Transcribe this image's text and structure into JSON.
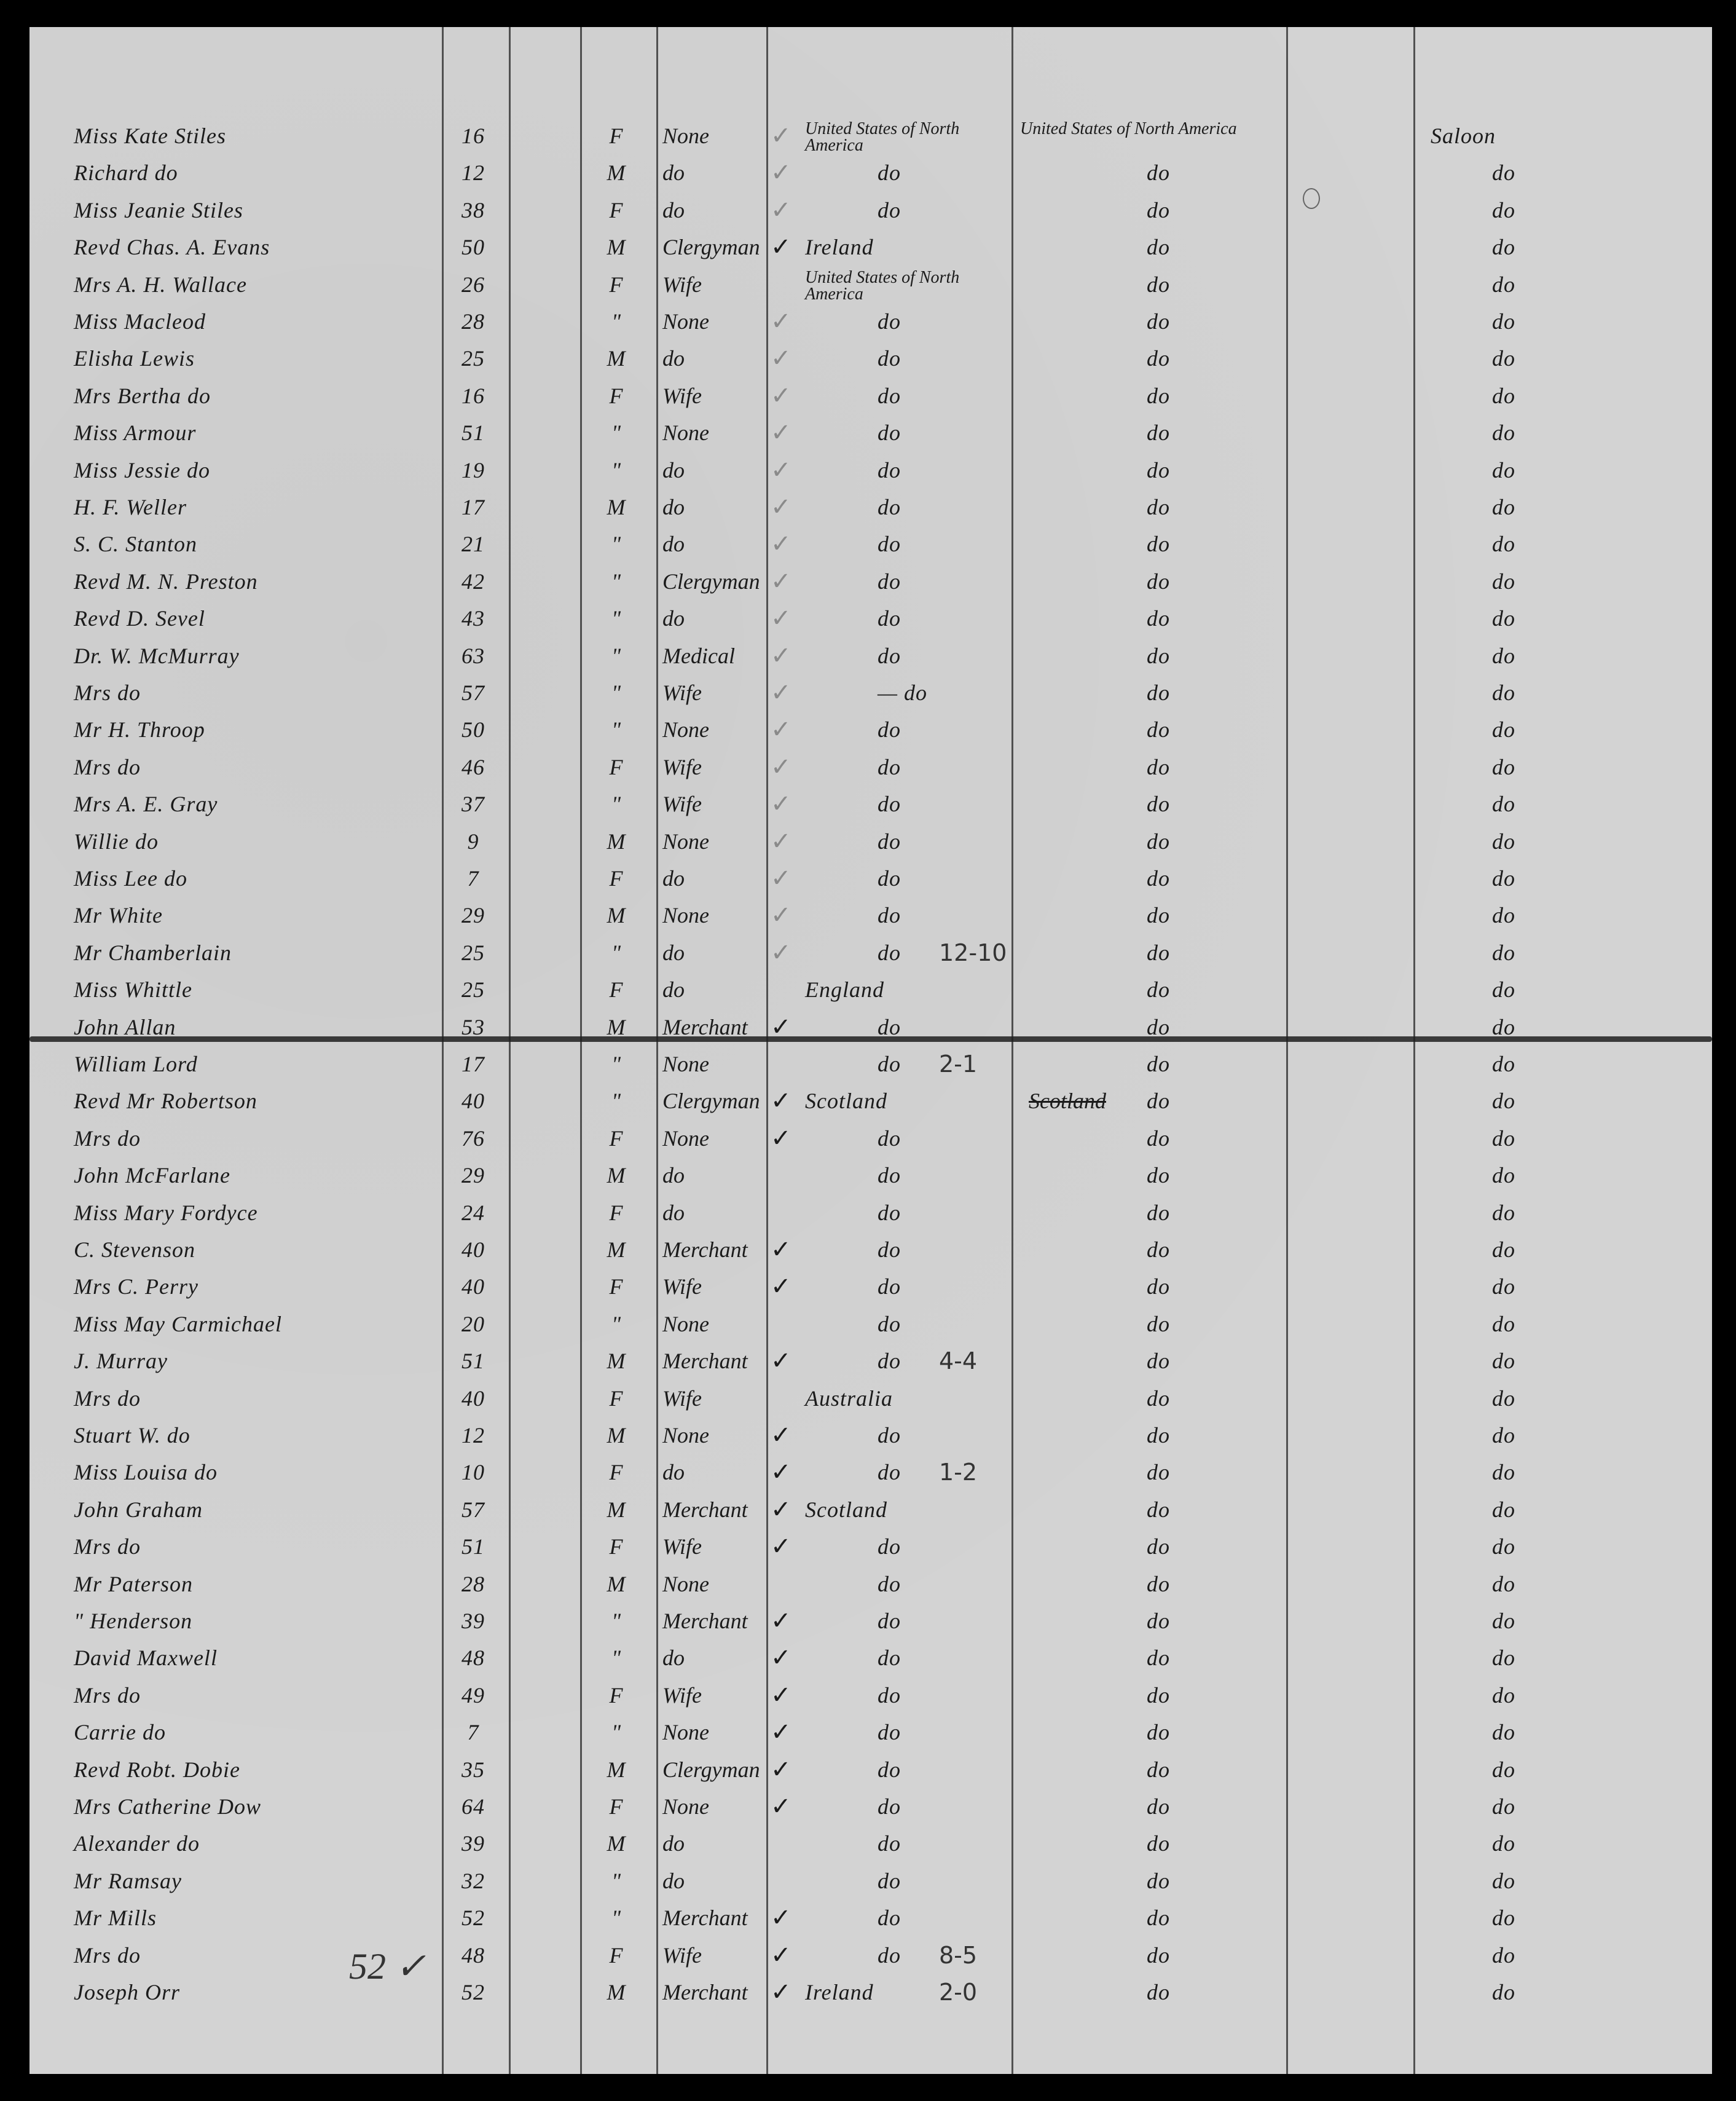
{
  "document": {
    "margin_note": "52 ✓",
    "rows": [
      {
        "name": "Miss Kate Stiles",
        "age": "16",
        "sex": "F",
        "occupation": "None",
        "check": "faint",
        "origin": "United States of North America",
        "citizenship": "United States of North America",
        "tally": "",
        "class": "Saloon"
      },
      {
        "name": "Richard   do",
        "age": "12",
        "sex": "M",
        "occupation": "do",
        "check": "faint",
        "origin": "do",
        "citizenship": "do",
        "tally": "",
        "class": "do"
      },
      {
        "name": "Miss Jeanie Stiles",
        "age": "38",
        "sex": "F",
        "occupation": "do",
        "check": "faint",
        "origin": "do",
        "citizenship": "do",
        "tally": "",
        "class": "do"
      },
      {
        "name": "Revd Chas. A. Evans",
        "age": "50",
        "sex": "M",
        "occupation": "Clergyman",
        "check": "ink",
        "origin": "Ireland",
        "citizenship": "do",
        "tally": "",
        "class": "do"
      },
      {
        "name": "Mrs A. H. Wallace",
        "age": "26",
        "sex": "F",
        "occupation": "Wife",
        "check": "",
        "origin": "United States of North America",
        "citizenship": "do",
        "tally": "",
        "class": "do"
      },
      {
        "name": "Miss Macleod",
        "age": "28",
        "sex": "\"",
        "occupation": "None",
        "check": "faint",
        "origin": "do",
        "citizenship": "do",
        "tally": "",
        "class": "do"
      },
      {
        "name": "Elisha Lewis",
        "age": "25",
        "sex": "M",
        "occupation": "do",
        "check": "faint",
        "origin": "do",
        "citizenship": "do",
        "tally": "",
        "class": "do"
      },
      {
        "name": "Mrs Bertha  do",
        "age": "16",
        "sex": "F",
        "occupation": "Wife",
        "check": "faint",
        "origin": "do",
        "citizenship": "do",
        "tally": "",
        "class": "do"
      },
      {
        "name": "Miss Armour",
        "age": "51",
        "sex": "\"",
        "occupation": "None",
        "check": "faint",
        "origin": "do",
        "citizenship": "do",
        "tally": "",
        "class": "do"
      },
      {
        "name": "Miss Jessie  do",
        "age": "19",
        "sex": "\"",
        "occupation": "do",
        "check": "faint",
        "origin": "do",
        "citizenship": "do",
        "tally": "",
        "class": "do"
      },
      {
        "name": "H. F. Weller",
        "age": "17",
        "sex": "M",
        "occupation": "do",
        "check": "faint",
        "origin": "do",
        "citizenship": "do",
        "tally": "",
        "class": "do"
      },
      {
        "name": "S. C. Stanton",
        "age": "21",
        "sex": "\"",
        "occupation": "do",
        "check": "faint",
        "origin": "do",
        "citizenship": "do",
        "tally": "",
        "class": "do"
      },
      {
        "name": "Revd M. N. Preston",
        "age": "42",
        "sex": "\"",
        "occupation": "Clergyman",
        "check": "faint",
        "origin": "do",
        "citizenship": "do",
        "tally": "",
        "class": "do"
      },
      {
        "name": "Revd D. Sevel",
        "age": "43",
        "sex": "\"",
        "occupation": "do",
        "check": "faint",
        "origin": "do",
        "citizenship": "do",
        "tally": "",
        "class": "do"
      },
      {
        "name": "Dr. W. McMurray",
        "age": "63",
        "sex": "\"",
        "occupation": "Medical",
        "check": "faint",
        "origin": "do",
        "citizenship": "do",
        "tally": "",
        "class": "do"
      },
      {
        "name": "Mrs        do",
        "age": "57",
        "sex": "\"",
        "occupation": "Wife",
        "check": "faint",
        "origin": "— do",
        "citizenship": "do",
        "tally": "",
        "class": "do"
      },
      {
        "name": "Mr H. Throop",
        "age": "50",
        "sex": "\"",
        "occupation": "None",
        "check": "faint",
        "origin": "do",
        "citizenship": "do",
        "tally": "",
        "class": "do"
      },
      {
        "name": "Mrs        do",
        "age": "46",
        "sex": "F",
        "occupation": "Wife",
        "check": "faint",
        "origin": "do",
        "citizenship": "do",
        "tally": "",
        "class": "do"
      },
      {
        "name": "Mrs A. E. Gray",
        "age": "37",
        "sex": "\"",
        "occupation": "Wife",
        "check": "faint",
        "origin": "do",
        "citizenship": "do",
        "tally": "",
        "class": "do"
      },
      {
        "name": "Willie     do",
        "age": "9",
        "sex": "M",
        "occupation": "None",
        "check": "faint",
        "origin": "do",
        "citizenship": "do",
        "tally": "",
        "class": "do"
      },
      {
        "name": "Miss Lee   do",
        "age": "7",
        "sex": "F",
        "occupation": "do",
        "check": "faint",
        "origin": "do",
        "citizenship": "do",
        "tally": "",
        "class": "do"
      },
      {
        "name": "Mr White",
        "age": "29",
        "sex": "M",
        "occupation": "None",
        "check": "faint",
        "origin": "do",
        "citizenship": "do",
        "tally": "",
        "class": "do"
      },
      {
        "name": "Mr Chamberlain",
        "age": "25",
        "sex": "\"",
        "occupation": "do",
        "check": "faint",
        "origin": "do",
        "citizenship": "do",
        "tally": "12-10",
        "class": "do"
      },
      {
        "name": "Miss Whittle",
        "age": "25",
        "sex": "F",
        "occupation": "do",
        "check": "",
        "origin": "England",
        "citizenship": "do",
        "tally": "",
        "class": "do"
      },
      {
        "name": "John Allan",
        "age": "53",
        "sex": "M",
        "occupation": "Merchant",
        "check": "ink",
        "origin": "do",
        "citizenship": "do",
        "tally": "",
        "class": "do"
      },
      {
        "name": "William Lord",
        "age": "17",
        "sex": "\"",
        "occupation": "None",
        "check": "",
        "origin": "do",
        "citizenship": "do",
        "tally": "2-1",
        "class": "do"
      },
      {
        "name": "Revd Mr Robertson",
        "age": "40",
        "sex": "\"",
        "occupation": "Clergyman",
        "check": "ink",
        "origin": "Scotland",
        "citizenship": "do",
        "struck": "Scotland",
        "tally": "",
        "class": "do"
      },
      {
        "name": "Mrs        do",
        "age": "76",
        "sex": "F",
        "occupation": "None",
        "check": "ink",
        "origin": "do",
        "citizenship": "do",
        "tally": "",
        "class": "do"
      },
      {
        "name": "John McFarlane",
        "age": "29",
        "sex": "M",
        "occupation": "do",
        "check": "",
        "origin": "do",
        "citizenship": "do",
        "tally": "",
        "class": "do"
      },
      {
        "name": "Miss Mary Fordyce",
        "age": "24",
        "sex": "F",
        "occupation": "do",
        "check": "",
        "origin": "do",
        "citizenship": "do",
        "tally": "",
        "class": "do"
      },
      {
        "name": "C. Stevenson",
        "age": "40",
        "sex": "M",
        "occupation": "Merchant",
        "check": "ink",
        "origin": "do",
        "citizenship": "do",
        "tally": "",
        "class": "do"
      },
      {
        "name": "Mrs C. Perry",
        "age": "40",
        "sex": "F",
        "occupation": "Wife",
        "check": "ink",
        "origin": "do",
        "citizenship": "do",
        "tally": "",
        "class": "do"
      },
      {
        "name": "Miss May Carmichael",
        "age": "20",
        "sex": "\"",
        "occupation": "None",
        "check": "",
        "origin": "do",
        "citizenship": "do",
        "tally": "",
        "class": "do"
      },
      {
        "name": "J. Murray",
        "age": "51",
        "sex": "M",
        "occupation": "Merchant",
        "check": "ink",
        "origin": "do",
        "citizenship": "do",
        "tally": "4-4",
        "class": "do"
      },
      {
        "name": "Mrs     do",
        "age": "40",
        "sex": "F",
        "occupation": "Wife",
        "check": "",
        "origin": "Australia",
        "citizenship": "do",
        "tally": "",
        "class": "do"
      },
      {
        "name": "Stuart W.   do",
        "age": "12",
        "sex": "M",
        "occupation": "None",
        "check": "ink",
        "origin": "do",
        "citizenship": "do",
        "tally": "",
        "class": "do"
      },
      {
        "name": "Miss Louisa  do",
        "age": "10",
        "sex": "F",
        "occupation": "do",
        "check": "ink",
        "origin": "do",
        "citizenship": "do",
        "tally": "1-2",
        "class": "do"
      },
      {
        "name": "John Graham",
        "age": "57",
        "sex": "M",
        "occupation": "Merchant",
        "check": "ink",
        "origin": "Scotland",
        "citizenship": "do",
        "tally": "",
        "class": "do"
      },
      {
        "name": "Mrs       do",
        "age": "51",
        "sex": "F",
        "occupation": "Wife",
        "check": "ink",
        "origin": "do",
        "citizenship": "do",
        "tally": "",
        "class": "do"
      },
      {
        "name": "Mr Paterson",
        "age": "28",
        "sex": "M",
        "occupation": "None",
        "check": "",
        "origin": "do",
        "citizenship": "do",
        "tally": "",
        "class": "do"
      },
      {
        "name": "\"   Henderson",
        "age": "39",
        "sex": "\"",
        "occupation": "Merchant",
        "check": "ink",
        "origin": "do",
        "citizenship": "do",
        "tally": "",
        "class": "do"
      },
      {
        "name": "David Maxwell",
        "age": "48",
        "sex": "\"",
        "occupation": "do",
        "check": "ink",
        "origin": "do",
        "citizenship": "do",
        "tally": "",
        "class": "do"
      },
      {
        "name": "Mrs       do",
        "age": "49",
        "sex": "F",
        "occupation": "Wife",
        "check": "ink",
        "origin": "do",
        "citizenship": "do",
        "tally": "",
        "class": "do"
      },
      {
        "name": "Carrie     do",
        "age": "7",
        "sex": "\"",
        "occupation": "None",
        "check": "ink",
        "origin": "do",
        "citizenship": "do",
        "tally": "",
        "class": "do"
      },
      {
        "name": "Revd Robt. Dobie",
        "age": "35",
        "sex": "M",
        "occupation": "Clergyman",
        "check": "ink",
        "origin": "do",
        "citizenship": "do",
        "tally": "",
        "class": "do"
      },
      {
        "name": "Mrs Catherine Dow",
        "age": "64",
        "sex": "F",
        "occupation": "None",
        "check": "ink",
        "origin": "do",
        "citizenship": "do",
        "tally": "",
        "class": "do"
      },
      {
        "name": "Alexander   do",
        "age": "39",
        "sex": "M",
        "occupation": "do",
        "check": "",
        "origin": "do",
        "citizenship": "do",
        "tally": "",
        "class": "do"
      },
      {
        "name": "Mr Ramsay",
        "age": "32",
        "sex": "\"",
        "occupation": "do",
        "check": "",
        "origin": "do",
        "citizenship": "do",
        "tally": "",
        "class": "do"
      },
      {
        "name": "Mr Mills",
        "age": "52",
        "sex": "\"",
        "occupation": "Merchant",
        "check": "ink",
        "origin": "do",
        "citizenship": "do",
        "tally": "",
        "class": "do"
      },
      {
        "name": "Mrs     do",
        "age": "48",
        "sex": "F",
        "occupation": "Wife",
        "check": "ink",
        "origin": "do",
        "citizenship": "do",
        "tally": "8-5",
        "class": "do"
      },
      {
        "name": "Joseph Orr",
        "age": "52",
        "sex": "M",
        "occupation": "Merchant",
        "check": "ink",
        "origin": "Ireland",
        "citizenship": "do",
        "tally": "2-0",
        "class": "do"
      }
    ]
  }
}
